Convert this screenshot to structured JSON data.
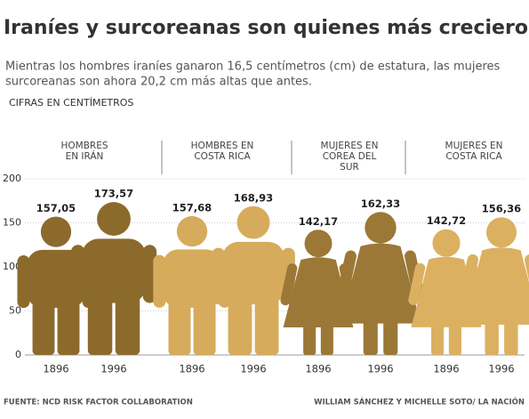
{
  "chart_data": {
    "type": "pictogram",
    "title": "Iraníes y surcoreanas son quienes más crecieron",
    "subtitle": [
      "Mientras los hombres iraníes ganaron 16,5 centímetros (cm) de estatura, las mujeres",
      "surcoreanas son ahora 20,2 cm más altas que antes."
    ],
    "unit_label": "CIFRAS EN CENTÍMETROS",
    "groups": [
      {
        "label": [
          "HOMBRES",
          "EN IRÁN"
        ],
        "figure": "man",
        "color": "#8c6a2c"
      },
      {
        "label": [
          "HOMBRES EN",
          "COSTA RICA"
        ],
        "figure": "man",
        "color": "#d6ab5c"
      },
      {
        "label": [
          "MUJERES EN",
          "COREA DEL",
          "SUR"
        ],
        "figure": "woman",
        "color": "#9b7836"
      },
      {
        "label": [
          "MUJERES EN",
          "COSTA RICA"
        ],
        "figure": "woman",
        "color": "#dcb061"
      }
    ],
    "categories": [
      "1896",
      "1996",
      "1896",
      "1996",
      "1896",
      "1996",
      "1896",
      "1996"
    ],
    "values": [
      157.05,
      173.57,
      157.68,
      168.93,
      142.17,
      162.33,
      142.72,
      156.36
    ],
    "value_labels": [
      "157,05",
      "173,57",
      "157,68",
      "168,93",
      "142,17",
      "162,33",
      "142,72",
      "156,36"
    ],
    "ylim": [
      0,
      200
    ],
    "yticks": [
      0,
      50,
      100,
      150,
      200
    ],
    "grid": true,
    "source": "FUENTE: NCD RISK FACTOR COLLABORATION",
    "credit": "WILLIAM SÁNCHEZ Y MICHELLE SOTO/ LA NACIÓN"
  }
}
